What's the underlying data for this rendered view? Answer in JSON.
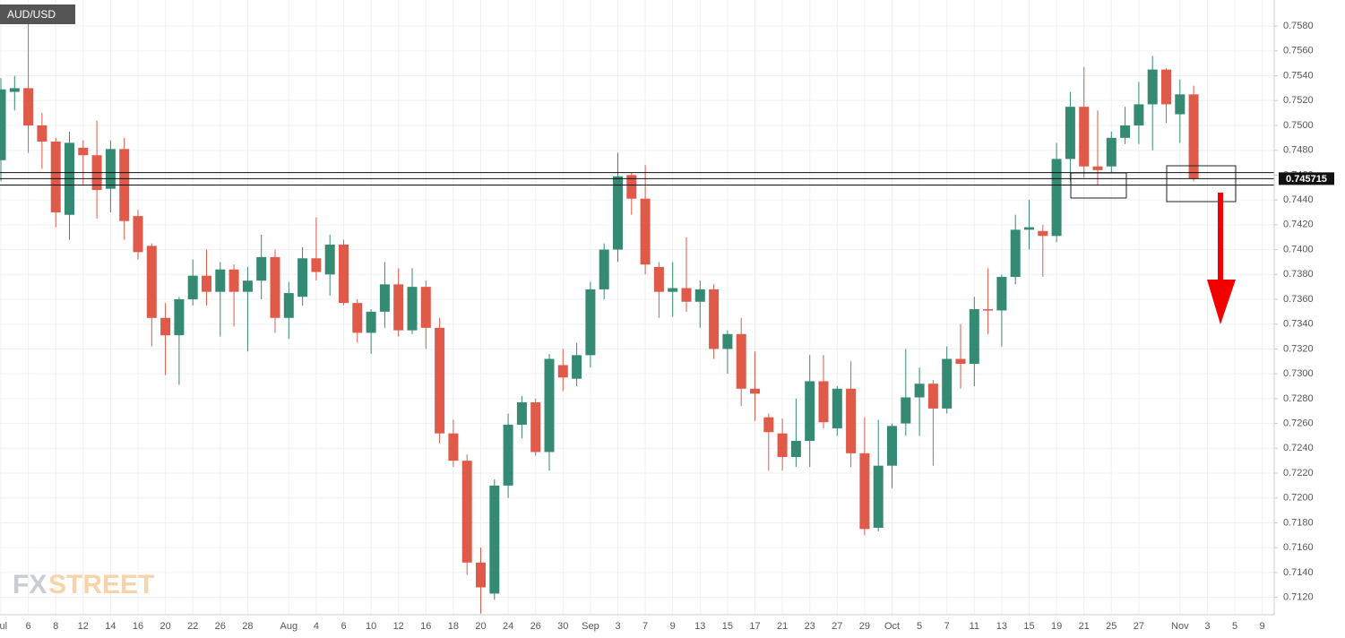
{
  "chart_data": {
    "type": "candlestick",
    "title": "AUD/USD",
    "watermark": [
      "FX",
      "STREET"
    ],
    "categories": [
      "Jul",
      null,
      "6",
      null,
      "8",
      null,
      "12",
      null,
      "14",
      null,
      "16",
      null,
      "20",
      null,
      "22",
      null,
      "26",
      null,
      "28",
      null,
      null,
      "Aug",
      null,
      "4",
      null,
      "6",
      null,
      "10",
      null,
      "12",
      null,
      "16",
      null,
      "18",
      null,
      "20",
      null,
      "24",
      null,
      "26",
      null,
      "30",
      null,
      "Sep",
      null,
      "3",
      null,
      "7",
      null,
      "9",
      null,
      "13",
      null,
      "15",
      null,
      "17",
      null,
      "21",
      null,
      "23",
      null,
      "27",
      null,
      "29",
      null,
      "Oct",
      null,
      "5",
      null,
      "7",
      null,
      "11",
      null,
      "13",
      null,
      "15",
      null,
      "19",
      null,
      "21",
      null,
      "25",
      null,
      "27",
      null,
      null,
      "Nov",
      null,
      "3",
      null,
      "5",
      null,
      "9"
    ],
    "open": [
      0.7472,
      0.7527,
      0.753,
      0.75,
      0.7487,
      0.7428,
      0.7482,
      0.7476,
      0.7449,
      0.7481,
      0.7427,
      0.7403,
      0.7345,
      0.7331,
      0.736,
      0.7379,
      0.7366,
      0.7384,
      0.7366,
      0.7375,
      0.7394,
      0.7345,
      0.7362,
      0.7393,
      0.738,
      0.7404,
      0.7357,
      0.7333,
      0.735,
      0.7372,
      0.7335,
      0.737,
      0.7337,
      0.7252,
      0.723,
      0.7148,
      0.7123,
      0.721,
      0.7259,
      0.7277,
      0.7237,
      0.7307,
      0.7296,
      0.7315,
      0.7368,
      0.74,
      0.746,
      0.7441,
      0.7386,
      0.7366,
      0.7369,
      0.7358,
      0.7368,
      0.732,
      0.7332,
      0.7288,
      0.7265,
      0.7252,
      0.7233,
      0.7246,
      0.7294,
      0.7256,
      0.7288,
      0.7236,
      0.7176,
      0.7226,
      0.726,
      0.7281,
      0.7292,
      0.7272,
      0.7312,
      0.7308,
      0.7352,
      0.7351,
      0.7378,
      0.7416,
      0.7415,
      0.7411,
      0.7473,
      0.7515,
      0.7467,
      0.7467,
      0.749,
      0.75,
      0.7517,
      0.7545,
      0.7509,
      0.7525,
      null,
      null,
      null,
      null,
      null
    ],
    "high": [
      0.7538,
      0.754,
      0.7597,
      0.751,
      0.749,
      0.7495,
      0.7488,
      0.7504,
      0.7488,
      0.749,
      0.7432,
      0.7405,
      0.7357,
      0.7362,
      0.7392,
      0.74,
      0.739,
      0.7388,
      0.7386,
      0.7412,
      0.74,
      0.7374,
      0.7402,
      0.7426,
      0.7412,
      0.7408,
      0.736,
      0.7352,
      0.739,
      0.7385,
      0.7385,
      0.7375,
      0.7345,
      0.7263,
      0.7235,
      0.716,
      0.7215,
      0.7268,
      0.7282,
      0.728,
      0.7316,
      0.732,
      0.7325,
      0.7374,
      0.7405,
      0.7478,
      0.7462,
      0.7468,
      0.739,
      0.739,
      0.741,
      0.7375,
      0.7372,
      0.7335,
      0.7345,
      0.7318,
      0.7268,
      0.7264,
      0.728,
      0.7315,
      0.7315,
      0.729,
      0.731,
      0.7265,
      0.7263,
      0.726,
      0.732,
      0.7305,
      0.7295,
      0.7322,
      0.734,
      0.7362,
      0.7385,
      0.738,
      0.7428,
      0.744,
      0.742,
      0.7486,
      0.7527,
      0.7547,
      0.7512,
      0.7495,
      0.7515,
      0.7535,
      0.7556,
      0.7546,
      0.7537,
      0.7532,
      null,
      null,
      null,
      null,
      null
    ],
    "low": [
      0.7455,
      0.7512,
      0.7478,
      0.7465,
      0.7418,
      0.7408,
      0.7452,
      0.7425,
      0.743,
      0.7408,
      0.7392,
      0.7322,
      0.7299,
      0.7291,
      0.7355,
      0.7355,
      0.733,
      0.7338,
      0.7318,
      0.736,
      0.7333,
      0.7328,
      0.7355,
      0.7375,
      0.7363,
      0.7355,
      0.7325,
      0.7316,
      0.7337,
      0.733,
      0.7332,
      0.732,
      0.7244,
      0.7225,
      0.7138,
      0.7107,
      0.7118,
      0.72,
      0.7248,
      0.7234,
      0.7222,
      0.7286,
      0.729,
      0.7305,
      0.736,
      0.739,
      0.7428,
      0.738,
      0.7345,
      0.7346,
      0.735,
      0.7337,
      0.7312,
      0.73,
      0.7274,
      0.7262,
      0.7222,
      0.7222,
      0.7225,
      0.7225,
      0.7256,
      0.725,
      0.7225,
      0.717,
      0.7173,
      0.7208,
      0.725,
      0.725,
      0.7226,
      0.7268,
      0.7288,
      0.729,
      0.7332,
      0.7322,
      0.7372,
      0.74,
      0.7378,
      0.7406,
      0.7455,
      0.7458,
      0.7452,
      0.7462,
      0.7485,
      0.7485,
      0.748,
      0.7502,
      0.7486,
      0.7455,
      null,
      null,
      null,
      null,
      null
    ],
    "close": [
      0.7529,
      0.753,
      0.75,
      0.7487,
      0.743,
      0.7486,
      0.7476,
      0.7448,
      0.7481,
      0.7423,
      0.7398,
      0.7345,
      0.7331,
      0.736,
      0.7379,
      0.7366,
      0.7384,
      0.7366,
      0.7375,
      0.7394,
      0.7345,
      0.7365,
      0.7393,
      0.7382,
      0.7404,
      0.7357,
      0.7333,
      0.735,
      0.7372,
      0.7335,
      0.737,
      0.7337,
      0.7252,
      0.723,
      0.7148,
      0.7128,
      0.721,
      0.7259,
      0.7277,
      0.7237,
      0.7312,
      0.7297,
      0.7315,
      0.7368,
      0.74,
      0.7459,
      0.7441,
      0.7388,
      0.7366,
      0.7369,
      0.7358,
      0.7368,
      0.732,
      0.7332,
      0.7288,
      0.7284,
      0.7253,
      0.7233,
      0.7246,
      0.7294,
      0.7261,
      0.7288,
      0.7236,
      0.7175,
      0.7226,
      0.7258,
      0.7281,
      0.7292,
      0.7272,
      0.7312,
      0.7308,
      0.7352,
      0.7351,
      0.7378,
      0.7416,
      0.7418,
      0.7411,
      0.7473,
      0.7515,
      0.7467,
      0.7464,
      0.749,
      0.75,
      0.7517,
      0.7545,
      0.7517,
      0.7525,
      0.7457,
      null,
      null,
      null,
      null,
      null
    ],
    "up_color": "#358a73",
    "down_color": "#df5a48",
    "last_price": 0.745715,
    "levels": [
      0.7462,
      0.7452
    ],
    "ylim": [
      0.7106,
      0.7601
    ],
    "yticks": [
      {
        "value": 0.712,
        "label": "0.7120"
      },
      {
        "value": 0.714,
        "label": "0.7140"
      },
      {
        "value": 0.716,
        "label": "0.7160"
      },
      {
        "value": 0.718,
        "label": "0.7180"
      },
      {
        "value": 0.72,
        "label": "0.7200"
      },
      {
        "value": 0.722,
        "label": "0.7220"
      },
      {
        "value": 0.724,
        "label": "0.7240"
      },
      {
        "value": 0.726,
        "label": "0.7260"
      },
      {
        "value": 0.728,
        "label": "0.7280"
      },
      {
        "value": 0.73,
        "label": "0.7300"
      },
      {
        "value": 0.732,
        "label": "0.7320"
      },
      {
        "value": 0.734,
        "label": "0.7340"
      },
      {
        "value": 0.736,
        "label": "0.7360"
      },
      {
        "value": 0.738,
        "label": "0.7380"
      },
      {
        "value": 0.74,
        "label": "0.7400"
      },
      {
        "value": 0.742,
        "label": "0.7420"
      },
      {
        "value": 0.744,
        "label": "0.7440"
      },
      {
        "value": 0.746,
        "label": "0.7460"
      },
      {
        "value": 0.748,
        "label": "0.7480"
      },
      {
        "value": 0.75,
        "label": "0.7500"
      },
      {
        "value": 0.752,
        "label": "0.7520"
      },
      {
        "value": 0.754,
        "label": "0.7540"
      },
      {
        "value": 0.756,
        "label": "0.7560"
      },
      {
        "value": 0.758,
        "label": "0.7580"
      }
    ],
    "grid": true
  }
}
